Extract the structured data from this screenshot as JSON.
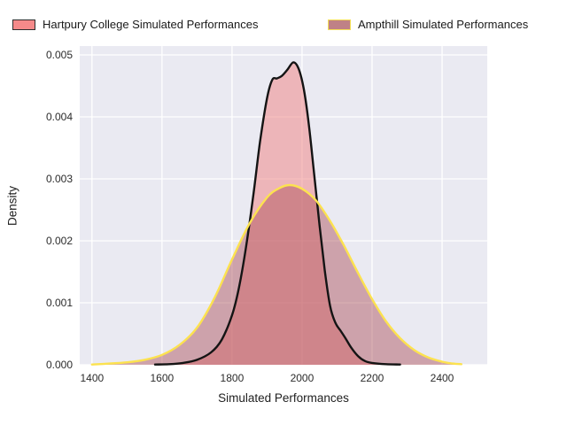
{
  "legend": {
    "items": [
      {
        "label": "Hartpury College Simulated Performances",
        "swatch_fill": "#f58a8a",
        "swatch_edge": "#2e2e2e"
      },
      {
        "label": "Ampthill Simulated Performances",
        "swatch_fill": "#bf8186",
        "swatch_edge": "#f3df55"
      }
    ]
  },
  "chart_data": {
    "type": "area",
    "subtype": "kde-density",
    "title": "",
    "xlabel": "Simulated Performances",
    "ylabel": "Density",
    "xlim": [
      1365,
      2529
    ],
    "ylim": [
      0,
      0.005143
    ],
    "grid": true,
    "legend_position": "top",
    "background_color": "#eaeaf2",
    "grid_color": "#ffffff",
    "xticks": [
      {
        "v": 1400,
        "label": "1400"
      },
      {
        "v": 1600,
        "label": "1600"
      },
      {
        "v": 1800,
        "label": "1800"
      },
      {
        "v": 2000,
        "label": "2000"
      },
      {
        "v": 2200,
        "label": "2200"
      },
      {
        "v": 2400,
        "label": "2400"
      }
    ],
    "yticks": [
      {
        "v": 0.0,
        "label": "0.000"
      },
      {
        "v": 0.001,
        "label": "0.001"
      },
      {
        "v": 0.002,
        "label": "0.002"
      },
      {
        "v": 0.003,
        "label": "0.003"
      },
      {
        "v": 0.004,
        "label": "0.004"
      },
      {
        "v": 0.005,
        "label": "0.005"
      }
    ],
    "series": [
      {
        "id": "hartpury",
        "name": "Hartpury College Simulated Performances",
        "line_color": "#141414",
        "line_width": 2.4,
        "fill_color": "rgba(240,128,128,0.5)",
        "points": [
          [
            1580,
            5e-06
          ],
          [
            1620,
            1e-05
          ],
          [
            1660,
            3e-05
          ],
          [
            1700,
            8e-05
          ],
          [
            1740,
            0.0002
          ],
          [
            1770,
            0.0004
          ],
          [
            1800,
            0.0008
          ],
          [
            1820,
            0.00125
          ],
          [
            1840,
            0.0019
          ],
          [
            1860,
            0.0027
          ],
          [
            1880,
            0.0036
          ],
          [
            1900,
            0.0043
          ],
          [
            1915,
            0.0046
          ],
          [
            1928,
            0.00462
          ],
          [
            1942,
            0.00466
          ],
          [
            1958,
            0.00476
          ],
          [
            1975,
            0.00488
          ],
          [
            1990,
            0.00478
          ],
          [
            2005,
            0.00445
          ],
          [
            2020,
            0.00385
          ],
          [
            2035,
            0.00305
          ],
          [
            2050,
            0.00225
          ],
          [
            2065,
            0.00152
          ],
          [
            2080,
            0.00095
          ],
          [
            2095,
            0.00068
          ],
          [
            2110,
            0.00055
          ],
          [
            2125,
            0.00042
          ],
          [
            2140,
            0.00028
          ],
          [
            2160,
            0.00014
          ],
          [
            2180,
            6e-05
          ],
          [
            2200,
            3e-05
          ],
          [
            2240,
            1e-05
          ],
          [
            2280,
            5e-06
          ]
        ]
      },
      {
        "id": "ampthill",
        "name": "Ampthill Simulated Performances",
        "line_color": "#fce24f",
        "line_width": 2.4,
        "fill_color": "rgba(170,75,85,0.45)",
        "points": [
          [
            1400,
            5e-06
          ],
          [
            1450,
            2e-05
          ],
          [
            1500,
            4e-05
          ],
          [
            1550,
            8e-05
          ],
          [
            1600,
            0.00016
          ],
          [
            1650,
            0.00032
          ],
          [
            1700,
            0.0006
          ],
          [
            1750,
            0.00108
          ],
          [
            1800,
            0.0017
          ],
          [
            1850,
            0.00228
          ],
          [
            1900,
            0.0027
          ],
          [
            1935,
            0.00285
          ],
          [
            1965,
            0.0029
          ],
          [
            2000,
            0.00284
          ],
          [
            2040,
            0.00265
          ],
          [
            2080,
            0.00232
          ],
          [
            2120,
            0.00192
          ],
          [
            2160,
            0.00148
          ],
          [
            2200,
            0.00106
          ],
          [
            2240,
            0.0007
          ],
          [
            2280,
            0.00043
          ],
          [
            2320,
            0.00024
          ],
          [
            2360,
            0.00012
          ],
          [
            2400,
            5e-05
          ],
          [
            2430,
            2e-05
          ],
          [
            2455,
            1e-05
          ]
        ]
      }
    ]
  }
}
